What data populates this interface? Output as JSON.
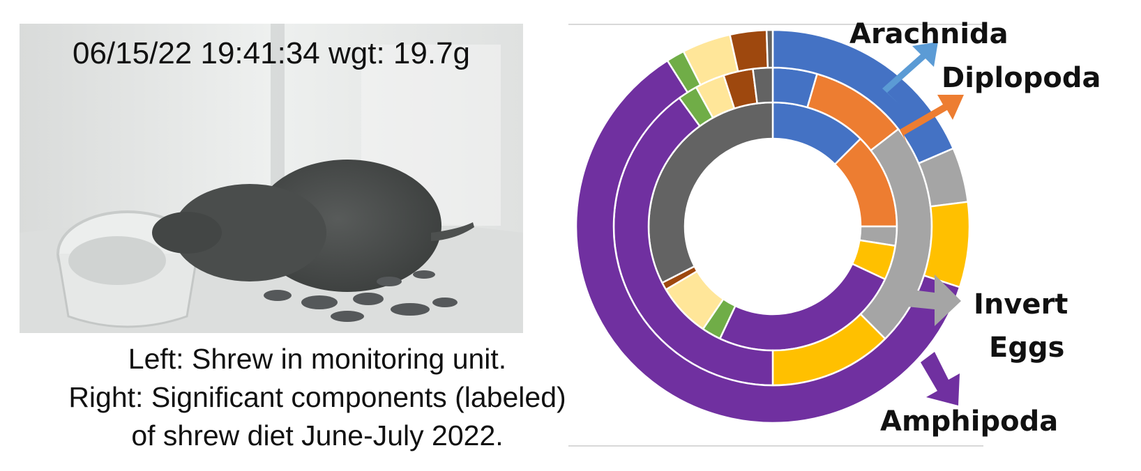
{
  "photo": {
    "timestamp_text": "06/15/22 19:41:34 wgt: 19.7g"
  },
  "caption": {
    "line1": "Left: Shrew in monitoring unit.",
    "line2": "Right: Significant components (labeled)",
    "line3": "of shrew diet June-July 2022."
  },
  "chart_data": {
    "type": "sunburst",
    "title": "",
    "colors": {
      "blue": "#4472C4",
      "orange": "#ED7D31",
      "gray": "#A5A5A5",
      "yellow": "#FFC000",
      "purple": "#7030A0",
      "cream": "#FFE699",
      "green": "#70AD47",
      "brown": "#9E480E",
      "darkgray": "#636363",
      "lightblue": "#5B9BD5"
    },
    "rings": [
      {
        "name": "",
        "segments": [
          {
            "color": "blue",
            "value": 12.5
          },
          {
            "color": "orange",
            "value": 12.5
          },
          {
            "color": "gray",
            "value": 2.5
          },
          {
            "color": "yellow",
            "value": 4.5
          },
          {
            "color": "purple",
            "value": 25
          },
          {
            "color": "green",
            "value": 2.5
          },
          {
            "color": "cream",
            "value": 7
          },
          {
            "color": "brown",
            "value": 1
          },
          {
            "color": "darkgray",
            "value": 32.5
          }
        ]
      },
      {
        "name": "",
        "segments": [
          {
            "color": "blue",
            "value": 4.5
          },
          {
            "color": "orange",
            "value": 10
          },
          {
            "color": "gray",
            "value": 23
          },
          {
            "color": "yellow",
            "value": 12.5
          },
          {
            "color": "purple",
            "value": 40
          },
          {
            "color": "green",
            "value": 2
          },
          {
            "color": "cream",
            "value": 3
          },
          {
            "color": "brown",
            "value": 3
          },
          {
            "color": "darkgray",
            "value": 2
          }
        ]
      },
      {
        "name": "",
        "segments": [
          {
            "color": "blue",
            "value": 18.5
          },
          {
            "color": "gray",
            "value": 4.5
          },
          {
            "color": "yellow",
            "value": 7
          },
          {
            "color": "purple",
            "value": 61
          },
          {
            "color": "green",
            "value": 1.5
          },
          {
            "color": "cream",
            "value": 4
          },
          {
            "color": "brown",
            "value": 3
          },
          {
            "color": "darkgray",
            "value": 0.5
          }
        ]
      }
    ],
    "labels": [
      {
        "text": "Arachnida",
        "color": "lightblue"
      },
      {
        "text": "Diplopoda",
        "color": "orange"
      },
      {
        "text": "Invert",
        "color": "gray"
      },
      {
        "text": "Eggs",
        "color": "gray"
      },
      {
        "text": "Amphipoda",
        "color": "purple"
      }
    ]
  }
}
